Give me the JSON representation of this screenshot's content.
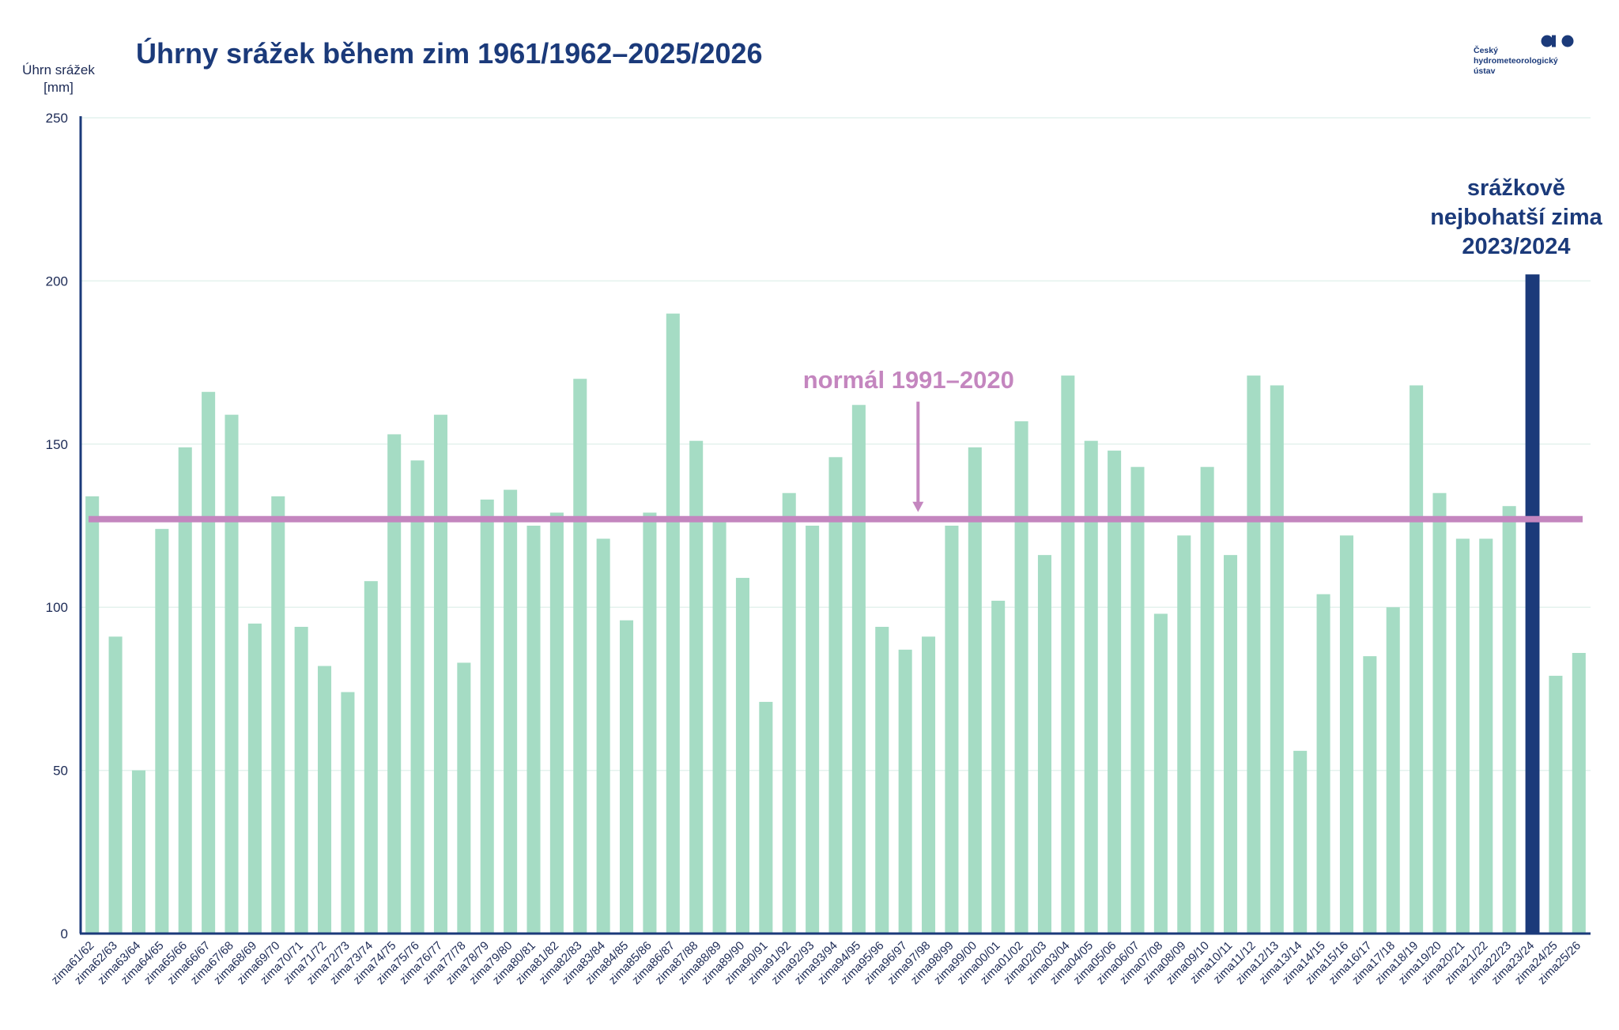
{
  "logo": {
    "lines": [
      "Český",
      "hydrometeorologický",
      "ústav"
    ]
  },
  "chart_data": {
    "type": "bar",
    "title": "Úhrny srážek během zim 1961/1962–2025/2026",
    "ylabel_lines": [
      "Úhrn srážek",
      "[mm]"
    ],
    "xlabel": "",
    "ylim": [
      0,
      250
    ],
    "yticks": [
      0,
      50,
      100,
      150,
      200,
      250
    ],
    "grid": true,
    "categories": [
      "zima61/62",
      "zima62/63",
      "zima63/64",
      "zima64/65",
      "zima65/66",
      "zima66/67",
      "zima67/68",
      "zima68/69",
      "zima69/70",
      "zima70/71",
      "zima71/72",
      "zima72/73",
      "zima73/74",
      "zima74/75",
      "zima75/76",
      "zima76/77",
      "zima77/78",
      "zima78/79",
      "zima79/80",
      "zima80/81",
      "zima81/82",
      "zima82/83",
      "zima83/84",
      "zima84/85",
      "zima85/86",
      "zima86/87",
      "zima87/88",
      "zima88/89",
      "zima89/90",
      "zima90/91",
      "zima91/92",
      "zima92/93",
      "zima93/94",
      "zima94/95",
      "zima95/96",
      "zima96/97",
      "zima97/98",
      "zima98/99",
      "zima99/00",
      "zima00/01",
      "zima01/02",
      "zima02/03",
      "zima03/04",
      "zima04/05",
      "zima05/06",
      "zima06/07",
      "zima07/08",
      "zima08/09",
      "zima09/10",
      "zima10/11",
      "zima11/12",
      "zima12/13",
      "zima13/14",
      "zima14/15",
      "zima15/16",
      "zima16/17",
      "zima17/18",
      "zima18/19",
      "zima19/20",
      "zima20/21",
      "zima21/22",
      "zima22/23",
      "zima23/24",
      "zima24/25",
      "zima25/26"
    ],
    "values": [
      134,
      91,
      50,
      124,
      149,
      166,
      159,
      95,
      134,
      94,
      82,
      74,
      108,
      153,
      145,
      159,
      83,
      133,
      136,
      125,
      129,
      170,
      121,
      96,
      129,
      190,
      151,
      127,
      109,
      71,
      135,
      125,
      146,
      162,
      94,
      87,
      91,
      125,
      149,
      102,
      157,
      116,
      171,
      151,
      148,
      143,
      98,
      122,
      143,
      116,
      171,
      168,
      56,
      104,
      122,
      85,
      100,
      168,
      135,
      121,
      121,
      131,
      202,
      79,
      86
    ],
    "highlight_index": 62,
    "normal": {
      "value": 127,
      "label": "normál 1991–2020",
      "arrow_category": "zima96/97"
    },
    "record_annotation": [
      "srážkově",
      "nejbohatší zima",
      "2023/2024"
    ],
    "colors": {
      "bar": "#a5dcc4",
      "highlight_bar": "#1b3a7a",
      "normal_line": "#c486bf",
      "axis": "#1b3a7a",
      "grid": "#e4f2ee",
      "title": "#1b3a7a"
    }
  }
}
